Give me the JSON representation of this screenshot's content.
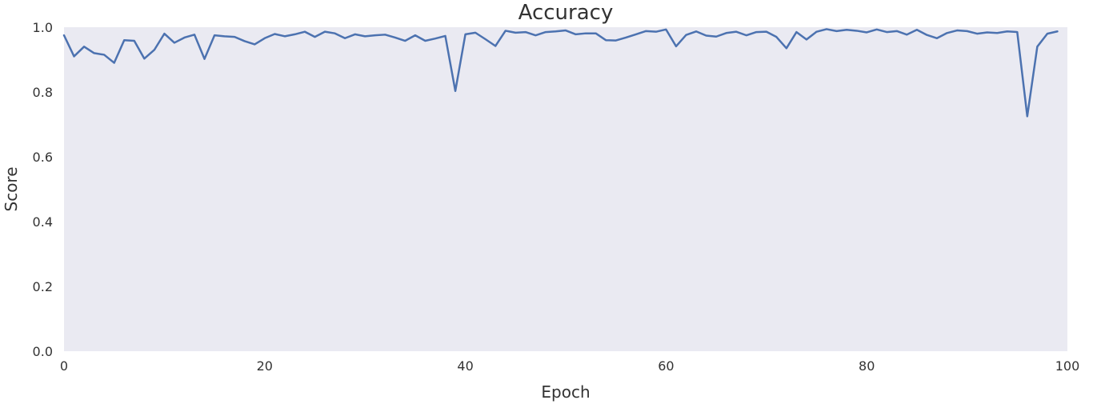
{
  "chart_data": {
    "type": "line",
    "title": "Accuracy",
    "xlabel": "Epoch",
    "ylabel": "Score",
    "xlim": [
      0,
      100
    ],
    "ylim": [
      0,
      1.0
    ],
    "xticks": [
      0,
      20,
      40,
      60,
      80,
      100
    ],
    "yticks": [
      0.0,
      0.2,
      0.4,
      0.6,
      0.8,
      1.0
    ],
    "xtick_labels": [
      "0",
      "20",
      "40",
      "60",
      "80",
      "100"
    ],
    "ytick_labels": [
      "0.0",
      "0.2",
      "0.4",
      "0.6",
      "0.8",
      "1.0"
    ],
    "grid": false,
    "background_color": "#eaeaf2",
    "series": [
      {
        "color": "#4c72b0",
        "x": [
          0,
          1,
          2,
          3,
          4,
          5,
          6,
          7,
          8,
          9,
          10,
          11,
          12,
          13,
          14,
          15,
          16,
          17,
          18,
          19,
          20,
          21,
          22,
          23,
          24,
          25,
          26,
          27,
          28,
          29,
          30,
          31,
          32,
          33,
          34,
          35,
          36,
          37,
          38,
          39,
          40,
          41,
          42,
          43,
          44,
          45,
          46,
          47,
          48,
          49,
          50,
          51,
          52,
          53,
          54,
          55,
          56,
          57,
          58,
          59,
          60,
          61,
          62,
          63,
          64,
          65,
          66,
          67,
          68,
          69,
          70,
          71,
          72,
          73,
          74,
          75,
          76,
          77,
          78,
          79,
          80,
          81,
          82,
          83,
          84,
          85,
          86,
          87,
          88,
          89,
          90,
          91,
          92,
          93,
          94,
          95,
          96,
          97,
          98,
          99
        ],
        "y": [
          0.975,
          0.91,
          0.94,
          0.92,
          0.915,
          0.89,
          0.96,
          0.958,
          0.903,
          0.93,
          0.98,
          0.952,
          0.968,
          0.977,
          0.902,
          0.975,
          0.972,
          0.97,
          0.957,
          0.947,
          0.966,
          0.979,
          0.972,
          0.978,
          0.986,
          0.97,
          0.986,
          0.981,
          0.966,
          0.978,
          0.972,
          0.975,
          0.977,
          0.968,
          0.958,
          0.975,
          0.958,
          0.965,
          0.973,
          0.803,
          0.978,
          0.983,
          0.963,
          0.942,
          0.989,
          0.983,
          0.985,
          0.975,
          0.985,
          0.987,
          0.99,
          0.978,
          0.981,
          0.981,
          0.96,
          0.959,
          0.968,
          0.978,
          0.988,
          0.986,
          0.993,
          0.941,
          0.976,
          0.987,
          0.974,
          0.971,
          0.982,
          0.986,
          0.975,
          0.985,
          0.986,
          0.97,
          0.935,
          0.985,
          0.962,
          0.986,
          0.994,
          0.988,
          0.992,
          0.989,
          0.984,
          0.993,
          0.985,
          0.988,
          0.977,
          0.992,
          0.976,
          0.966,
          0.982,
          0.99,
          0.988,
          0.98,
          0.984,
          0.982,
          0.987,
          0.985,
          0.725,
          0.94,
          0.98,
          0.987
        ]
      }
    ]
  }
}
